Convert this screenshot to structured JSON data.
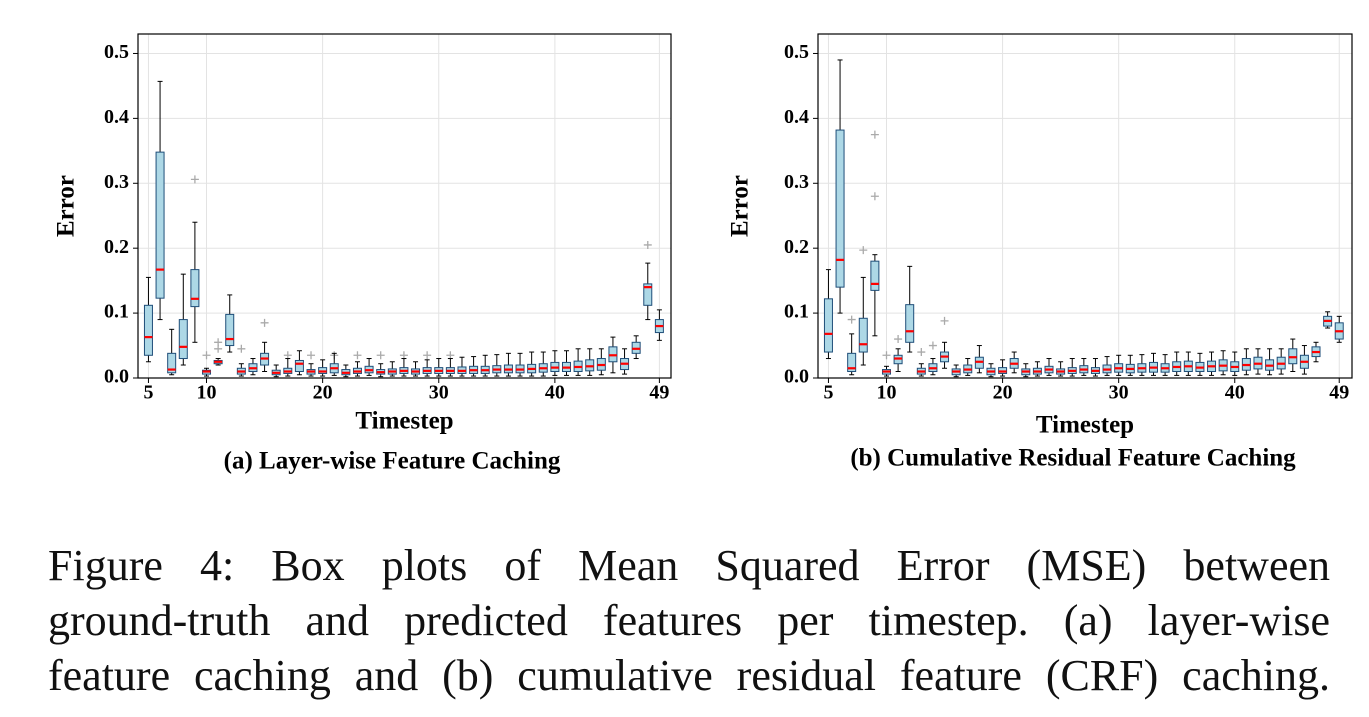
{
  "chart_data": [
    {
      "type": "box",
      "title": "(a) Layer-wise Feature Caching",
      "xlabel": "Timestep",
      "ylabel": "Error",
      "x": [
        5,
        6,
        7,
        8,
        9,
        10,
        11,
        12,
        13,
        14,
        15,
        16,
        17,
        18,
        19,
        20,
        21,
        22,
        23,
        24,
        25,
        26,
        27,
        28,
        29,
        30,
        31,
        32,
        33,
        34,
        35,
        36,
        37,
        38,
        39,
        40,
        41,
        42,
        43,
        44,
        45,
        46,
        47,
        48,
        49
      ],
      "whislo": [
        0.025,
        0.09,
        0.005,
        0.02,
        0.055,
        0.003,
        0.02,
        0.04,
        0.003,
        0.005,
        0.01,
        0.002,
        0.003,
        0.005,
        0.003,
        0.003,
        0.004,
        0.002,
        0.003,
        0.004,
        0.002,
        0.003,
        0.003,
        0.003,
        0.003,
        0.003,
        0.003,
        0.003,
        0.003,
        0.003,
        0.003,
        0.003,
        0.003,
        0.003,
        0.003,
        0.004,
        0.004,
        0.004,
        0.004,
        0.005,
        0.008,
        0.006,
        0.03,
        0.09,
        0.058
      ],
      "q1": [
        0.035,
        0.123,
        0.008,
        0.03,
        0.11,
        0.006,
        0.022,
        0.05,
        0.006,
        0.01,
        0.02,
        0.005,
        0.007,
        0.01,
        0.006,
        0.007,
        0.008,
        0.005,
        0.007,
        0.008,
        0.006,
        0.006,
        0.007,
        0.006,
        0.007,
        0.007,
        0.007,
        0.007,
        0.007,
        0.007,
        0.008,
        0.008,
        0.008,
        0.008,
        0.009,
        0.01,
        0.01,
        0.01,
        0.011,
        0.012,
        0.025,
        0.013,
        0.038,
        0.112,
        0.07
      ],
      "median": [
        0.063,
        0.167,
        0.013,
        0.048,
        0.122,
        0.01,
        0.025,
        0.06,
        0.01,
        0.015,
        0.03,
        0.008,
        0.01,
        0.022,
        0.01,
        0.01,
        0.015,
        0.008,
        0.01,
        0.012,
        0.009,
        0.01,
        0.011,
        0.01,
        0.011,
        0.011,
        0.011,
        0.011,
        0.012,
        0.012,
        0.013,
        0.013,
        0.013,
        0.014,
        0.015,
        0.016,
        0.016,
        0.017,
        0.018,
        0.02,
        0.035,
        0.022,
        0.045,
        0.14,
        0.08
      ],
      "q3": [
        0.112,
        0.348,
        0.038,
        0.09,
        0.167,
        0.012,
        0.027,
        0.098,
        0.015,
        0.022,
        0.038,
        0.012,
        0.015,
        0.027,
        0.013,
        0.016,
        0.022,
        0.013,
        0.015,
        0.018,
        0.013,
        0.014,
        0.016,
        0.014,
        0.016,
        0.016,
        0.016,
        0.017,
        0.018,
        0.018,
        0.019,
        0.02,
        0.02,
        0.021,
        0.022,
        0.024,
        0.024,
        0.026,
        0.028,
        0.03,
        0.048,
        0.03,
        0.055,
        0.145,
        0.09
      ],
      "whishi": [
        0.155,
        0.457,
        0.075,
        0.16,
        0.24,
        0.015,
        0.03,
        0.128,
        0.022,
        0.03,
        0.055,
        0.02,
        0.03,
        0.042,
        0.022,
        0.028,
        0.038,
        0.02,
        0.025,
        0.03,
        0.022,
        0.025,
        0.03,
        0.025,
        0.028,
        0.03,
        0.03,
        0.032,
        0.033,
        0.035,
        0.036,
        0.038,
        0.038,
        0.04,
        0.04,
        0.042,
        0.042,
        0.045,
        0.045,
        0.045,
        0.063,
        0.045,
        0.065,
        0.177,
        0.105
      ],
      "fliers": {
        "x": [
          9,
          10,
          11,
          11,
          13,
          15,
          17,
          19,
          21,
          23,
          25,
          27,
          29,
          31,
          48
        ],
        "y": [
          0.306,
          0.035,
          0.055,
          0.045,
          0.045,
          0.085,
          0.035,
          0.035,
          0.035,
          0.035,
          0.035,
          0.035,
          0.035,
          0.035,
          0.205
        ]
      },
      "box_color": "#add8e6",
      "median_color": "#ff0000",
      "flier_color": "#aaaaaa",
      "xlim": [
        4.1,
        50
      ],
      "xticks": [
        5,
        10,
        20,
        30,
        40,
        49
      ],
      "ylim": [
        0,
        0.53
      ],
      "yticks": [
        {
          "value": 0,
          "label": "0.0"
        },
        0.1,
        0.2,
        0.3,
        0.4,
        0.5
      ],
      "grid": true
    },
    {
      "type": "box",
      "title": "(b) Cumulative Residual Feature Caching",
      "xlabel": "Timestep",
      "ylabel": "Error",
      "x": [
        5,
        6,
        7,
        8,
        9,
        10,
        11,
        12,
        13,
        14,
        15,
        16,
        17,
        18,
        19,
        20,
        21,
        22,
        23,
        24,
        25,
        26,
        27,
        28,
        29,
        30,
        31,
        32,
        33,
        34,
        35,
        36,
        37,
        38,
        39,
        40,
        41,
        42,
        43,
        44,
        45,
        46,
        47,
        48,
        49
      ],
      "whislo": [
        0.03,
        0.1,
        0.005,
        0.02,
        0.065,
        0.003,
        0.01,
        0.04,
        0.003,
        0.005,
        0.015,
        0.002,
        0.004,
        0.008,
        0.002,
        0.003,
        0.008,
        0.002,
        0.003,
        0.004,
        0.003,
        0.003,
        0.004,
        0.003,
        0.004,
        0.004,
        0.004,
        0.004,
        0.004,
        0.004,
        0.004,
        0.004,
        0.004,
        0.004,
        0.005,
        0.004,
        0.005,
        0.006,
        0.005,
        0.006,
        0.01,
        0.006,
        0.025,
        0.077,
        0.055
      ],
      "q1": [
        0.04,
        0.14,
        0.01,
        0.04,
        0.135,
        0.006,
        0.022,
        0.055,
        0.006,
        0.01,
        0.025,
        0.005,
        0.008,
        0.015,
        0.005,
        0.007,
        0.015,
        0.005,
        0.006,
        0.008,
        0.006,
        0.007,
        0.008,
        0.007,
        0.008,
        0.009,
        0.008,
        0.009,
        0.009,
        0.009,
        0.01,
        0.01,
        0.01,
        0.01,
        0.011,
        0.01,
        0.012,
        0.014,
        0.012,
        0.014,
        0.022,
        0.015,
        0.033,
        0.08,
        0.06
      ],
      "median": [
        0.068,
        0.182,
        0.015,
        0.052,
        0.145,
        0.01,
        0.03,
        0.072,
        0.01,
        0.015,
        0.033,
        0.01,
        0.013,
        0.025,
        0.01,
        0.01,
        0.022,
        0.01,
        0.01,
        0.013,
        0.01,
        0.011,
        0.013,
        0.011,
        0.013,
        0.015,
        0.014,
        0.015,
        0.016,
        0.015,
        0.017,
        0.018,
        0.016,
        0.018,
        0.019,
        0.017,
        0.02,
        0.022,
        0.019,
        0.022,
        0.032,
        0.025,
        0.04,
        0.088,
        0.072
      ],
      "q3": [
        0.122,
        0.382,
        0.038,
        0.092,
        0.18,
        0.013,
        0.035,
        0.113,
        0.015,
        0.022,
        0.04,
        0.014,
        0.02,
        0.032,
        0.015,
        0.016,
        0.03,
        0.014,
        0.015,
        0.018,
        0.014,
        0.016,
        0.019,
        0.016,
        0.02,
        0.022,
        0.021,
        0.022,
        0.024,
        0.022,
        0.025,
        0.026,
        0.024,
        0.026,
        0.028,
        0.025,
        0.03,
        0.032,
        0.028,
        0.032,
        0.045,
        0.035,
        0.048,
        0.095,
        0.085
      ],
      "whishi": [
        0.167,
        0.49,
        0.068,
        0.155,
        0.19,
        0.018,
        0.045,
        0.172,
        0.022,
        0.03,
        0.055,
        0.02,
        0.03,
        0.05,
        0.022,
        0.028,
        0.04,
        0.022,
        0.025,
        0.03,
        0.025,
        0.03,
        0.03,
        0.03,
        0.033,
        0.035,
        0.035,
        0.036,
        0.038,
        0.036,
        0.04,
        0.04,
        0.038,
        0.04,
        0.042,
        0.04,
        0.045,
        0.045,
        0.045,
        0.045,
        0.06,
        0.05,
        0.055,
        0.102,
        0.095
      ],
      "fliers": {
        "x": [
          7,
          8,
          9,
          9,
          10,
          11,
          13,
          14,
          15
        ],
        "y": [
          0.09,
          0.197,
          0.375,
          0.28,
          0.035,
          0.06,
          0.04,
          0.05,
          0.088
        ]
      },
      "box_color": "#add8e6",
      "median_color": "#ff0000",
      "flier_color": "#aaaaaa",
      "xlim": [
        4.1,
        50.1
      ],
      "xticks": [
        5,
        10,
        20,
        30,
        40,
        49
      ],
      "ylim": [
        0,
        0.53
      ],
      "yticks": [
        {
          "value": 0,
          "label": "0.0"
        },
        0.1,
        0.2,
        0.3,
        0.4,
        0.5
      ],
      "grid": true
    }
  ],
  "figure_caption": [
    "Figure 4:  Box plots of Mean Squared Error (MSE) between",
    "ground-truth and predicted features per timestep. (a) layer-wise",
    "feature caching and (b) cumulative residual feature (CRF) caching."
  ]
}
